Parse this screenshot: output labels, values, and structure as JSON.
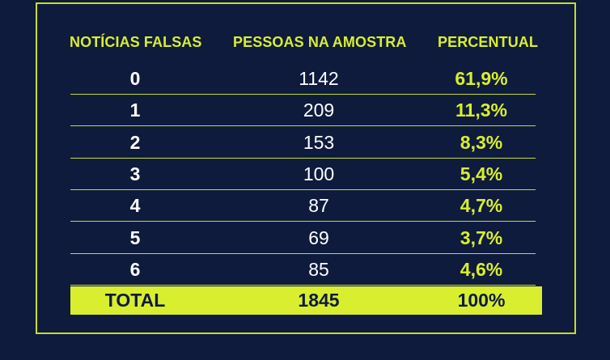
{
  "chart_data": {
    "type": "table",
    "columns": [
      "NOTÍCIAS FALSAS",
      "PESSOAS NA AMOSTRA",
      "PERCENTUAL"
    ],
    "rows": [
      {
        "count": "0",
        "people": "1142",
        "percent": "61,9%"
      },
      {
        "count": "1",
        "people": "209",
        "percent": "11,3%"
      },
      {
        "count": "2",
        "people": "153",
        "percent": "8,3%"
      },
      {
        "count": "3",
        "people": "100",
        "percent": "5,4%"
      },
      {
        "count": "4",
        "people": "87",
        "percent": "4,7%"
      },
      {
        "count": "5",
        "people": "69",
        "percent": "3,7%"
      },
      {
        "count": "6",
        "people": "85",
        "percent": "4,6%"
      }
    ],
    "total": {
      "label": "TOTAL",
      "people": "1845",
      "percent": "100%"
    }
  },
  "colors": {
    "background": "#0e1b3d",
    "accent": "#d9ee2f",
    "text": "#ffffff"
  }
}
